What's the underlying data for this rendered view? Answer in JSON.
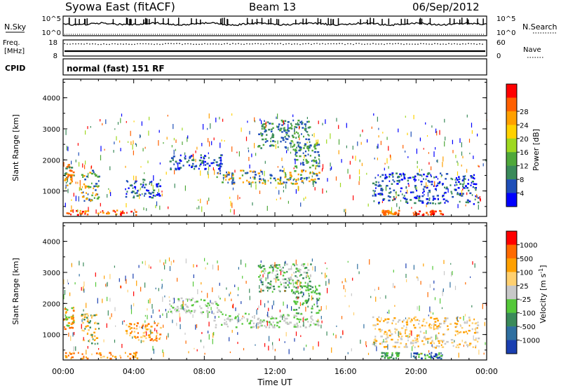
{
  "header": {
    "station": "Syowa East (fitACF)",
    "beam": "Beam 13",
    "date": "06/Sep/2012"
  },
  "top_panels": {
    "nsky_label": "N.Sky",
    "nsky_ticks": [
      "10^5",
      "10^0"
    ],
    "nsearch_label": "N.Search",
    "nsearch_ticks": [
      "10^5",
      "10^0"
    ],
    "freq_label": "Freq.",
    "freq_unit": "[MHz]",
    "freq_ticks": [
      "18",
      "8"
    ],
    "nave_label": "Nave",
    "nave_ticks": [
      "60",
      "0"
    ],
    "cpid_label": "CPID",
    "cpid_value": "normal (fast) 151 RF"
  },
  "chart_data": [
    {
      "type": "heatmap",
      "panel": "power",
      "xlabel": "",
      "ylabel": "Slant Range [km]",
      "x_range_hours": [
        0,
        24
      ],
      "ylim": [
        180,
        4600
      ],
      "y_ticks": [
        "1000",
        "2000",
        "3000",
        "4000"
      ],
      "colorbar": {
        "label": "Power [dB]",
        "ticks": [
          "4",
          "8",
          "12",
          "16",
          "20",
          "24",
          "28"
        ],
        "colors": [
          "#0000ff",
          "#1f4fb8",
          "#3a8a5a",
          "#4fa83a",
          "#9ed820",
          "#ffd200",
          "#ffa000",
          "#ff6000",
          "#ff0000"
        ]
      },
      "regions": [
        {
          "t": [
            0.0,
            0.6
          ],
          "r": [
            1200,
            1900
          ],
          "c": [
            "#ff6000",
            "#ffa000",
            "#3a8a5a"
          ]
        },
        {
          "t": [
            0.0,
            4.2
          ],
          "r": [
            250,
            400
          ],
          "c": [
            "#ff0000",
            "#ff6000",
            "#ffa000"
          ]
        },
        {
          "t": [
            1.0,
            2.0
          ],
          "r": [
            700,
            1700
          ],
          "c": [
            "#ffa000",
            "#4fa83a",
            "#1f4fb8"
          ]
        },
        {
          "t": [
            3.5,
            5.5
          ],
          "r": [
            800,
            1400
          ],
          "c": [
            "#1f4fb8",
            "#0000ff",
            "#3a8a5a"
          ]
        },
        {
          "t": [
            6.0,
            9.0
          ],
          "r": [
            1700,
            2200
          ],
          "c": [
            "#1f4fb8",
            "#0000ff",
            "#3a8a5a"
          ]
        },
        {
          "t": [
            8.5,
            14.5
          ],
          "r": [
            1250,
            1700
          ],
          "c": [
            "#1f4fb8",
            "#4fa83a",
            "#ffa000"
          ]
        },
        {
          "t": [
            11.0,
            14.0
          ],
          "r": [
            2400,
            3300
          ],
          "c": [
            "#1f4fb8",
            "#3a8a5a",
            "#4fa83a"
          ]
        },
        {
          "t": [
            13.0,
            14.5
          ],
          "r": [
            1700,
            2600
          ],
          "c": [
            "#1f4fb8",
            "#4fa83a"
          ]
        },
        {
          "t": [
            17.5,
            23.5
          ],
          "r": [
            600,
            1600
          ],
          "c": [
            "#1f4fb8",
            "#0000ff",
            "#3a8a5a"
          ]
        },
        {
          "t": [
            18.0,
            19.0
          ],
          "r": [
            250,
            400
          ],
          "c": [
            "#ff6000",
            "#ffa000"
          ]
        },
        {
          "t": [
            19.8,
            21.5
          ],
          "r": [
            250,
            400
          ],
          "c": [
            "#ff0000",
            "#ff6000"
          ]
        }
      ]
    },
    {
      "type": "heatmap",
      "panel": "velocity",
      "xlabel": "Time UT",
      "ylabel": "Slant Range [km]",
      "x_range_hours": [
        0,
        24
      ],
      "x_ticks": [
        "00:00",
        "04:00",
        "08:00",
        "12:00",
        "16:00",
        "20:00",
        "00:00"
      ],
      "ylim": [
        180,
        4600
      ],
      "y_ticks": [
        "1000",
        "2000",
        "3000",
        "4000"
      ],
      "colorbar": {
        "label": "Velocity [m s",
        "label_exp": "-1",
        "label_close": "]",
        "ticks": [
          "1000",
          "500",
          "100",
          "25",
          "-25",
          "-100",
          "-500",
          "-1000"
        ],
        "colors": [
          "#1a3fb0",
          "#2f6fa0",
          "#3a8a5a",
          "#55c83a",
          "#c8c8c8",
          "#ffd070",
          "#ffa000",
          "#ff6a00",
          "#ff0000"
        ]
      },
      "regions": [
        {
          "t": [
            0.0,
            0.6
          ],
          "r": [
            1200,
            1900
          ],
          "c": [
            "#ff6a00",
            "#ffa000",
            "#55c83a"
          ]
        },
        {
          "t": [
            0.0,
            4.2
          ],
          "r": [
            250,
            450
          ],
          "c": [
            "#ffa000",
            "#ffd070",
            "#ff6a00"
          ]
        },
        {
          "t": [
            1.0,
            2.0
          ],
          "r": [
            700,
            1700
          ],
          "c": [
            "#ffa000",
            "#ffd070",
            "#3a8a5a"
          ]
        },
        {
          "t": [
            3.5,
            5.5
          ],
          "r": [
            800,
            1400
          ],
          "c": [
            "#ffa000",
            "#ffd070",
            "#ff6a00"
          ]
        },
        {
          "t": [
            6.0,
            9.0
          ],
          "r": [
            1700,
            2200
          ],
          "c": [
            "#c8c8c8",
            "#c8c8c8",
            "#55c83a"
          ]
        },
        {
          "t": [
            8.5,
            14.5
          ],
          "r": [
            1250,
            1700
          ],
          "c": [
            "#c8c8c8",
            "#c8c8c8",
            "#55c83a"
          ]
        },
        {
          "t": [
            11.0,
            14.0
          ],
          "r": [
            2400,
            3300
          ],
          "c": [
            "#c8c8c8",
            "#55c83a",
            "#3a8a5a"
          ]
        },
        {
          "t": [
            13.0,
            14.5
          ],
          "r": [
            1700,
            2600
          ],
          "c": [
            "#55c83a",
            "#3a8a5a"
          ]
        },
        {
          "t": [
            17.5,
            23.5
          ],
          "r": [
            600,
            1600
          ],
          "c": [
            "#ffa000",
            "#c8c8c8",
            "#ffd070"
          ]
        },
        {
          "t": [
            18.0,
            19.0
          ],
          "r": [
            250,
            450
          ],
          "c": [
            "#55c83a",
            "#3a8a5a"
          ]
        },
        {
          "t": [
            19.8,
            21.5
          ],
          "r": [
            250,
            450
          ],
          "c": [
            "#1a3fb0",
            "#2f6fa0",
            "#55c83a"
          ]
        }
      ]
    }
  ]
}
